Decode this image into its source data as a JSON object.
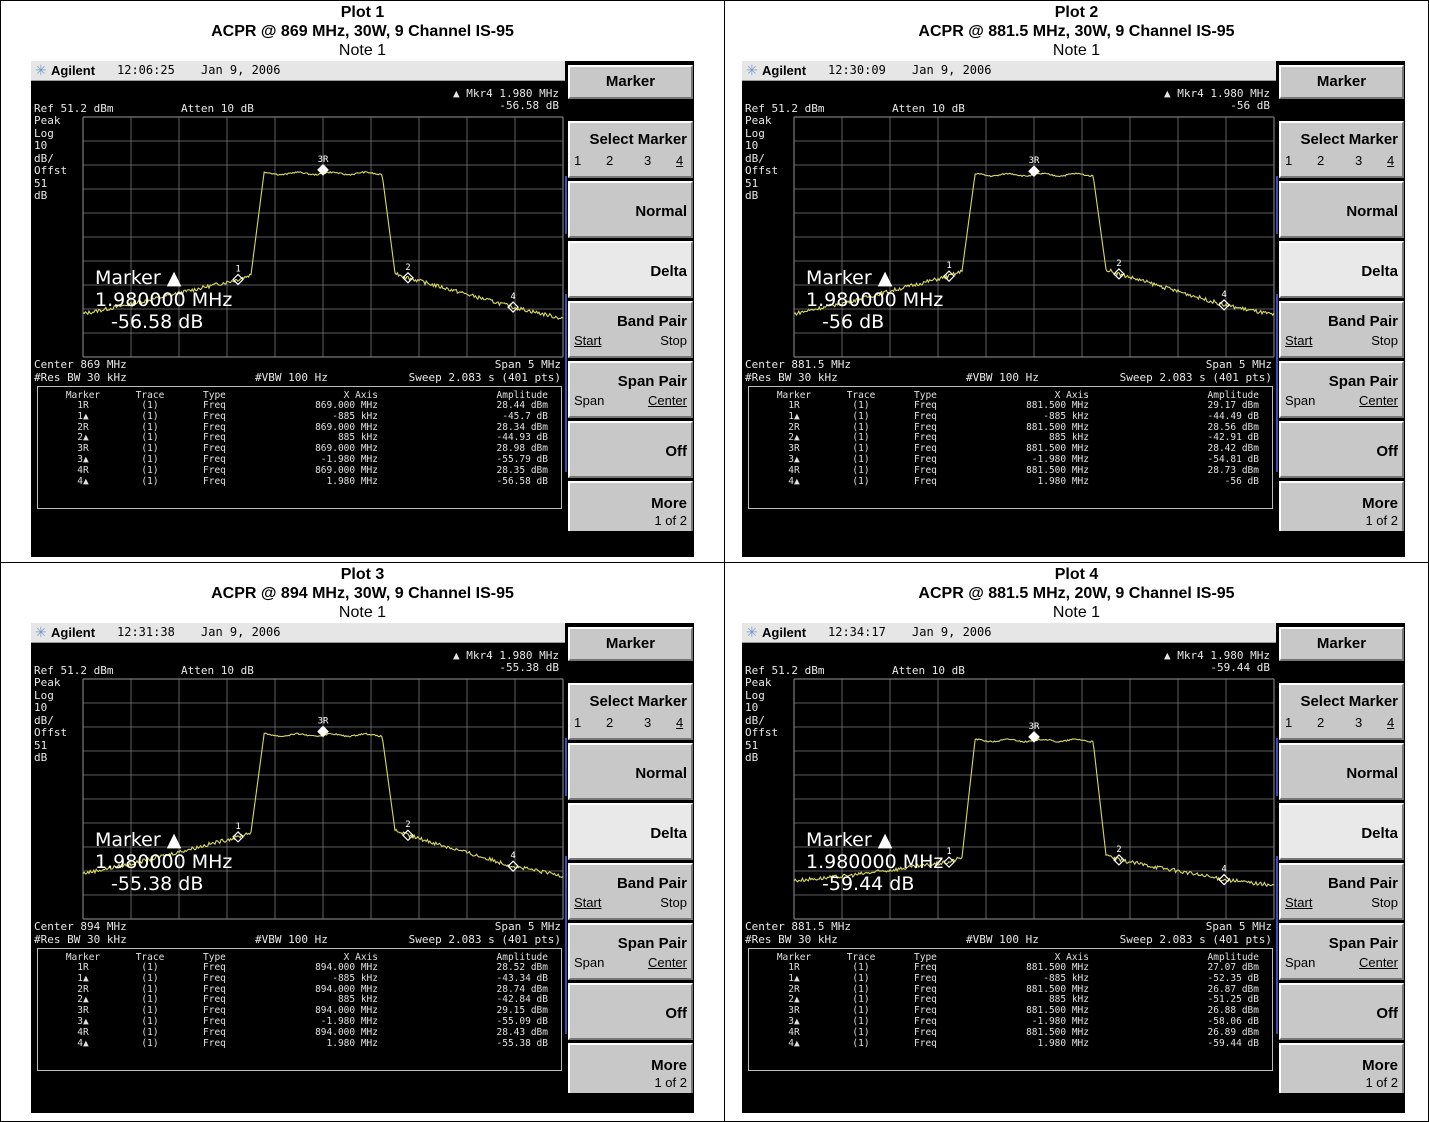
{
  "colors": {
    "trace": "#d8d860",
    "graticule": "#7a7a7a",
    "screen_bg": "#000000",
    "softkey_bg": "#c8c8c8"
  },
  "plots": [
    {
      "title": "Plot 1",
      "subtitle": "ACPR @ 869 MHz, 30W, 9 Channel IS-95",
      "note": "Note 1",
      "brand": "Agilent",
      "time": "12:06:25",
      "date": "Jan 9, 2006",
      "mkr_readout_line1": "▲ Mkr4  1.980 MHz",
      "mkr_readout_line2": "-56.58 dB",
      "ref": "Ref 51.2 dBm",
      "atten": "Atten 10 dB",
      "left_labels": [
        "Peak",
        "Log",
        "10",
        "dB/",
        "Offst",
        "51",
        "dB"
      ],
      "marker_title": "Marker ▲",
      "marker_freq": "1.980000 MHz",
      "marker_value": "-56.58 dB",
      "center": "Center 869 MHz",
      "span": "Span 5 MHz",
      "res_bw": "#Res BW 30 kHz",
      "vbw": "#VBW 100 Hz",
      "sweep": "Sweep 2.083 s (401 pts)",
      "table_header": [
        "Marker",
        "Trace",
        "Type",
        "X Axis",
        "Amplitude"
      ],
      "table_rows": [
        [
          "1R",
          "(1)",
          "Freq",
          "869.000 MHz",
          "28.44 dBm"
        ],
        [
          "1▲",
          "(1)",
          "Freq",
          "-885 kHz",
          "-45.7 dB"
        ],
        [
          "2R",
          "(1)",
          "Freq",
          "869.000 MHz",
          "28.34 dBm"
        ],
        [
          "2▲",
          "(1)",
          "Freq",
          "885 kHz",
          "-44.93 dB"
        ],
        [
          "3R",
          "(1)",
          "Freq",
          "869.000 MHz",
          "28.98 dBm"
        ],
        [
          "3▲",
          "(1)",
          "Freq",
          "-1.980 MHz",
          "-55.79 dB"
        ],
        [
          "4R",
          "(1)",
          "Freq",
          "869.000 MHz",
          "28.35 dBm"
        ],
        [
          "4▲",
          "(1)",
          "Freq",
          "1.980 MHz",
          "-56.58 dB"
        ]
      ],
      "chart_data": {
        "type": "line",
        "ylim": [
          -49,
          51
        ],
        "xlim": [
          -2.5,
          2.5
        ],
        "ref_level": 51.2,
        "peak": 28.98,
        "lower_adj": -16.7,
        "upper_adj": -16.0,
        "lower_alt": -26.8,
        "upper_alt": -28.2,
        "edge_lower": -31.0,
        "edge_upper": -33.0,
        "markers": [
          {
            "id": "1",
            "x": -0.885
          },
          {
            "id": "2",
            "x": 0.885
          },
          {
            "id": "3R",
            "x": 0.0
          },
          {
            "id": "4",
            "x": 1.98
          }
        ]
      },
      "marker_ref_label": "3R",
      "marker_num_labels": [
        "1",
        "2",
        "4"
      ]
    },
    {
      "title": "Plot 2",
      "subtitle": "ACPR @ 881.5 MHz, 30W, 9 Channel IS-95",
      "note": "Note 1",
      "brand": "Agilent",
      "time": "12:30:09",
      "date": "Jan 9, 2006",
      "mkr_readout_line1": "▲ Mkr4  1.980 MHz",
      "mkr_readout_line2": "-56 dB",
      "ref": "Ref 51.2 dBm",
      "atten": "Atten 10 dB",
      "left_labels": [
        "Peak",
        "Log",
        "10",
        "dB/",
        "Offst",
        "51",
        "dB"
      ],
      "marker_title": "Marker ▲",
      "marker_freq": "1.980000 MHz",
      "marker_value": "-56 dB",
      "center": "Center 881.5 MHz",
      "span": "Span 5 MHz",
      "res_bw": "#Res BW 30 kHz",
      "vbw": "#VBW 100 Hz",
      "sweep": "Sweep 2.083 s (401 pts)",
      "table_header": [
        "Marker",
        "Trace",
        "Type",
        "X Axis",
        "Amplitude"
      ],
      "table_rows": [
        [
          "1R",
          "(1)",
          "Freq",
          "881.500 MHz",
          "29.17 dBm"
        ],
        [
          "1▲",
          "(1)",
          "Freq",
          "-885 kHz",
          "-44.49 dB"
        ],
        [
          "2R",
          "(1)",
          "Freq",
          "881.500 MHz",
          "28.56 dBm"
        ],
        [
          "2▲",
          "(1)",
          "Freq",
          "885 kHz",
          "-42.91 dB"
        ],
        [
          "3R",
          "(1)",
          "Freq",
          "881.500 MHz",
          "28.42 dBm"
        ],
        [
          "3▲",
          "(1)",
          "Freq",
          "-1.980 MHz",
          "-54.81 dB"
        ],
        [
          "4R",
          "(1)",
          "Freq",
          "881.500 MHz",
          "28.73 dBm"
        ],
        [
          "4▲",
          "(1)",
          "Freq",
          "1.980 MHz",
          "-56 dB"
        ]
      ],
      "chart_data": {
        "type": "line",
        "ylim": [
          -49,
          51
        ],
        "xlim": [
          -2.5,
          2.5
        ],
        "ref_level": 51.2,
        "peak": 28.42,
        "lower_adj": -15.3,
        "upper_adj": -14.4,
        "lower_alt": -26.4,
        "upper_alt": -27.3,
        "edge_lower": -31.0,
        "edge_upper": -31.5,
        "markers": [
          {
            "id": "1",
            "x": -0.885
          },
          {
            "id": "2",
            "x": 0.885
          },
          {
            "id": "3R",
            "x": 0.0
          },
          {
            "id": "4",
            "x": 1.98
          }
        ]
      },
      "marker_ref_label": "3R",
      "marker_num_labels": [
        "1",
        "2",
        "4"
      ]
    },
    {
      "title": "Plot 3",
      "subtitle": "ACPR @ 894 MHz, 30W, 9 Channel IS-95",
      "note": "Note 1",
      "brand": "Agilent",
      "time": "12:31:38",
      "date": "Jan 9, 2006",
      "mkr_readout_line1": "▲ Mkr4  1.980 MHz",
      "mkr_readout_line2": "-55.38 dB",
      "ref": "Ref 51.2 dBm",
      "atten": "Atten 10 dB",
      "left_labels": [
        "Peak",
        "Log",
        "10",
        "dB/",
        "Offst",
        "51",
        "dB"
      ],
      "marker_title": "Marker ▲",
      "marker_freq": "1.980000 MHz",
      "marker_value": "-55.38 dB",
      "center": "Center 894 MHz",
      "span": "Span 5 MHz",
      "res_bw": "#Res BW 30 kHz",
      "vbw": "#VBW 100 Hz",
      "sweep": "Sweep 2.083 s (401 pts)",
      "table_header": [
        "Marker",
        "Trace",
        "Type",
        "X Axis",
        "Amplitude"
      ],
      "table_rows": [
        [
          "1R",
          "(1)",
          "Freq",
          "894.000 MHz",
          "28.52 dBm"
        ],
        [
          "1▲",
          "(1)",
          "Freq",
          "-885 kHz",
          "-43.34 dB"
        ],
        [
          "2R",
          "(1)",
          "Freq",
          "894.000 MHz",
          "28.74 dBm"
        ],
        [
          "2▲",
          "(1)",
          "Freq",
          "885 kHz",
          "-42.84 dB"
        ],
        [
          "3R",
          "(1)",
          "Freq",
          "894.000 MHz",
          "29.15 dBm"
        ],
        [
          "3▲",
          "(1)",
          "Freq",
          "-1.980 MHz",
          "-55.09 dB"
        ],
        [
          "4R",
          "(1)",
          "Freq",
          "894.000 MHz",
          "28.43 dBm"
        ],
        [
          "4▲",
          "(1)",
          "Freq",
          "1.980 MHz",
          "-55.38 dB"
        ]
      ],
      "chart_data": {
        "type": "line",
        "ylim": [
          -49,
          51
        ],
        "xlim": [
          -2.5,
          2.5
        ],
        "ref_level": 51.2,
        "peak": 29.15,
        "lower_adj": -14.8,
        "upper_adj": -14.1,
        "lower_alt": -25.9,
        "upper_alt": -27.0,
        "edge_lower": -30.0,
        "edge_upper": -31.0,
        "markers": [
          {
            "id": "1",
            "x": -0.885
          },
          {
            "id": "2",
            "x": 0.885
          },
          {
            "id": "3R",
            "x": 0.0
          },
          {
            "id": "4",
            "x": 1.98
          }
        ]
      },
      "marker_ref_label": "3R",
      "marker_num_labels": [
        "1",
        "2",
        "4"
      ]
    },
    {
      "title": "Plot 4",
      "subtitle": "ACPR @ 881.5 MHz, 20W, 9 Channel IS-95",
      "note": "Note 1",
      "brand": "Agilent",
      "time": "12:34:17",
      "date": "Jan 9, 2006",
      "mkr_readout_line1": "▲ Mkr4  1.980 MHz",
      "mkr_readout_line2": "-59.44 dB",
      "ref": "Ref 51.2 dBm",
      "atten": "Atten 10 dB",
      "left_labels": [
        "Peak",
        "Log",
        "10",
        "dB/",
        "Offst",
        "51",
        "dB"
      ],
      "marker_title": "Marker ▲",
      "marker_freq": "1.980000 MHz",
      "marker_value": "-59.44 dB",
      "center": "Center 881.5 MHz",
      "span": "Span 5 MHz",
      "res_bw": "#Res BW 30 kHz",
      "vbw": "#VBW 100 Hz",
      "sweep": "Sweep 2.083 s (401 pts)",
      "table_header": [
        "Marker",
        "Trace",
        "Type",
        "X Axis",
        "Amplitude"
      ],
      "table_rows": [
        [
          "1R",
          "(1)",
          "Freq",
          "881.500 MHz",
          "27.07 dBm"
        ],
        [
          "1▲",
          "(1)",
          "Freq",
          "-885 kHz",
          "-52.35 dB"
        ],
        [
          "2R",
          "(1)",
          "Freq",
          "881.500 MHz",
          "26.87 dBm"
        ],
        [
          "2▲",
          "(1)",
          "Freq",
          "885 kHz",
          "-51.25 dB"
        ],
        [
          "3R",
          "(1)",
          "Freq",
          "881.500 MHz",
          "26.88 dBm"
        ],
        [
          "3▲",
          "(1)",
          "Freq",
          "-1.980 MHz",
          "-58.06 dB"
        ],
        [
          "4R",
          "(1)",
          "Freq",
          "881.500 MHz",
          "26.89 dBm"
        ],
        [
          "4▲",
          "(1)",
          "Freq",
          "1.980 MHz",
          "-59.44 dB"
        ]
      ],
      "chart_data": {
        "type": "line",
        "ylim": [
          -49,
          51
        ],
        "xlim": [
          -2.5,
          2.5
        ],
        "ref_level": 51.2,
        "peak": 26.88,
        "lower_adj": -25.3,
        "upper_adj": -24.4,
        "lower_alt": -31.2,
        "upper_alt": -32.6,
        "edge_lower": -33.0,
        "edge_upper": -35.0,
        "markers": [
          {
            "id": "1",
            "x": -0.885
          },
          {
            "id": "2",
            "x": 0.885
          },
          {
            "id": "3R",
            "x": 0.0
          },
          {
            "id": "4",
            "x": 1.98
          }
        ]
      },
      "marker_ref_label": "3R",
      "marker_num_labels": [
        "1",
        "2",
        "4"
      ]
    }
  ],
  "softkeys": {
    "menu_title": "Marker",
    "select_marker": "Select Marker",
    "select_nums": [
      "1",
      "2",
      "3",
      "4"
    ],
    "normal": "Normal",
    "delta": "Delta",
    "band_pair": "Band Pair",
    "start": "Start",
    "stop": "Stop",
    "span_pair": "Span Pair",
    "span": "Span",
    "center": "Center",
    "off": "Off",
    "more": "More",
    "more_sub": "1 of 2"
  }
}
